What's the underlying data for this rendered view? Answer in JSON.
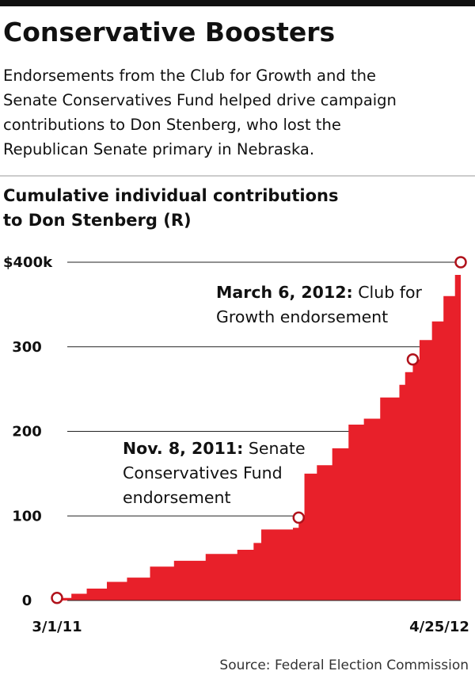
{
  "chart_data": {
    "type": "area",
    "title": "Conservative Boosters",
    "subtitle_lines": [
      "Endorsements from the Club for Growth and the",
      "Senate Conservatives Fund helped drive campaign",
      "contributions to Don Stenberg, who lost the",
      "Republican Senate primary in Nebraska."
    ],
    "chart_title_lines": [
      "Cumulative individual contributions",
      "to Don Stenberg (R)"
    ],
    "source": "Source: Federal Election Commission",
    "color": "#e8202a",
    "x": [
      "2011-03-01",
      "2011-03-16",
      "2011-04-01",
      "2011-04-22",
      "2011-05-13",
      "2011-06-06",
      "2011-07-01",
      "2011-08-03",
      "2011-09-05",
      "2011-09-22",
      "2011-09-30",
      "2011-11-02",
      "2011-11-08",
      "2011-11-14",
      "2011-11-27",
      "2011-12-13",
      "2011-12-30",
      "2012-01-15",
      "2012-02-01",
      "2012-02-21",
      "2012-02-27",
      "2012-03-06",
      "2012-03-13",
      "2012-03-26",
      "2012-04-07",
      "2012-04-19",
      "2012-04-25"
    ],
    "values": [
      3,
      8,
      14,
      22,
      27,
      40,
      47,
      55,
      60,
      68,
      84,
      86,
      98,
      150,
      160,
      180,
      208,
      215,
      240,
      255,
      270,
      285,
      308,
      330,
      360,
      385,
      400
    ],
    "xlim": [
      "2011-03-01",
      "2012-04-25"
    ],
    "xticks": [
      {
        "value": "2011-03-01",
        "label": "3/1/11"
      },
      {
        "value": "2012-04-25",
        "label": "4/25/12"
      }
    ],
    "ylim": [
      0,
      400
    ],
    "yticks": [
      0,
      100,
      200,
      300,
      {
        "value": 400,
        "label": "$400k"
      }
    ],
    "grid": true,
    "annotations": [
      {
        "x": "2011-11-08",
        "label_bold": "Nov. 8, 2011:",
        "text_lines": [
          "Senate",
          "Conservatives Fund",
          "endorsement"
        ]
      },
      {
        "x": "2012-03-06",
        "label_bold": "March 6, 2012:",
        "text_lines": [
          "Club for",
          "Growth endorsement"
        ]
      }
    ]
  }
}
